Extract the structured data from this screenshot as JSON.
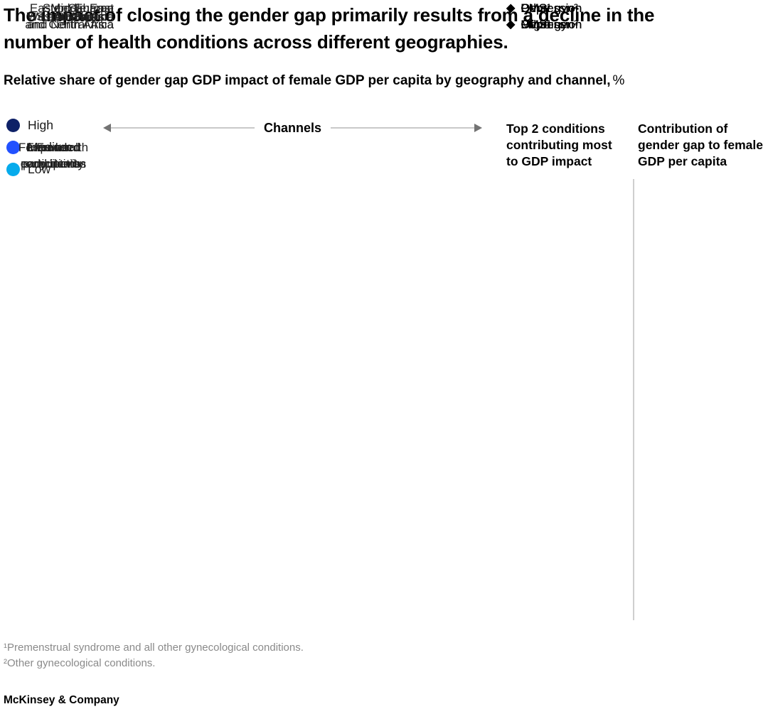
{
  "glyphs": {
    "diamond_bullet": "◆"
  },
  "chart_data": {
    "type": "table",
    "title": "The impact of closing the gender gap primarily results from a decline in the\nnumber of health conditions across different geographies.",
    "subtitle": "Relative share of gender gap GDP impact of female GDP per capita by geography and channel,",
    "unit": "%",
    "legend_levels": [
      {
        "label": "High",
        "color": "#0E2167"
      },
      {
        "label": "Medium",
        "color": "#2251FF"
      },
      {
        "label": "Low",
        "color": "#06ABEC"
      }
    ],
    "channels_axis_label": "Channels",
    "channels": [
      "Fewer health\nconditions",
      "Expanded\nparticipation",
      "Increased\nproductivity",
      "Fewer\nearly deaths"
    ],
    "columns": {
      "top2_header": "Top 2 conditions\ncontributing most\nto GDP impact",
      "contribution_header": "Contribution of\ngender gap to female\nGDP per capita"
    },
    "rows": [
      {
        "region": "Australasia",
        "top2": [
          "Depression",
          "PMS¹"
        ]
      },
      {
        "region": "East Asia",
        "top2": [
          "PMS¹",
          "Migraine"
        ]
      },
      {
        "region": "Eastern Europe\nand Central Asia",
        "top2": [
          "PMS¹",
          "Other gyn²"
        ]
      },
      {
        "region": "Latin America",
        "top2": [
          "PMS¹",
          "Depression"
        ]
      },
      {
        "region": "Middle East\nand North Africa",
        "top2": [
          "Other gyn²",
          "Depression"
        ]
      },
      {
        "region": "South Asia",
        "top2": [
          "PMS¹",
          "Other gyn²"
        ]
      },
      {
        "region": "Sub-Saharan\nAfrica",
        "top2": [
          "Other gyn²",
          "PMS¹"
        ]
      },
      {
        "region": "US and Canada",
        "top2": [
          "Depression",
          "PMS¹"
        ]
      },
      {
        "region": "Western Europe",
        "top2": [
          "Other gyn²",
          "PMS¹"
        ]
      }
    ],
    "footnotes": [
      "¹Premenstrual syndrome and all other gynecological conditions.",
      "²Other gynecological conditions."
    ],
    "source_label": "McKinsey & Company"
  }
}
